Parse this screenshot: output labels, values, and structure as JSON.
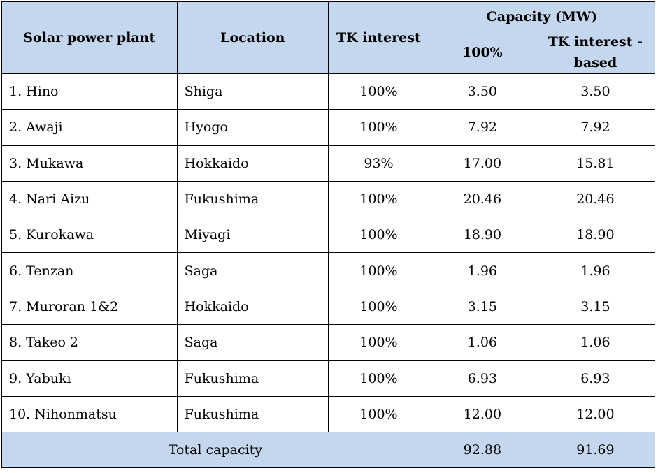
{
  "headers": {
    "plant": "Solar power plant",
    "location": "Location",
    "interest": "TK interest",
    "capacity_group": "Capacity (MW)",
    "capacity_100": "100%",
    "capacity_tk_line1": "TK interest -",
    "capacity_tk_line2": "based"
  },
  "rows": [
    {
      "plant": "1. Hino",
      "location": "Shiga",
      "interest": "100%",
      "cap100": "3.50",
      "captk": "3.50"
    },
    {
      "plant": "2. Awaji",
      "location": "Hyogo",
      "interest": "100%",
      "cap100": "7.92",
      "captk": "7.92"
    },
    {
      "plant": "3. Mukawa",
      "location": "Hokkaido",
      "interest": "93%",
      "cap100": "17.00",
      "captk": "15.81"
    },
    {
      "plant": "4. Nari Aizu",
      "location": "Fukushima",
      "interest": "100%",
      "cap100": "20.46",
      "captk": "20.46"
    },
    {
      "plant": "5. Kurokawa",
      "location": "Miyagi",
      "interest": "100%",
      "cap100": "18.90",
      "captk": "18.90"
    },
    {
      "plant": "6. Tenzan",
      "location": "Saga",
      "interest": "100%",
      "cap100": "1.96",
      "captk": "1.96"
    },
    {
      "plant": "7. Muroran 1&2",
      "location": "Hokkaido",
      "interest": "100%",
      "cap100": "3.15",
      "captk": "3.15"
    },
    {
      "plant": "8. Takeo 2",
      "location": "Saga",
      "interest": "100%",
      "cap100": "1.06",
      "captk": "1.06"
    },
    {
      "plant": "9. Yabuki",
      "location": "Fukushima",
      "interest": "100%",
      "cap100": "6.93",
      "captk": "6.93"
    },
    {
      "plant": "10. Nihonmatsu",
      "location": "Fukushima",
      "interest": "100%",
      "cap100": "12.00",
      "captk": "12.00"
    }
  ],
  "total": {
    "label": "Total capacity",
    "cap100": "92.88",
    "captk": "91.69"
  },
  "colors": {
    "header_bg": "#c5d7ee",
    "border": "#000000"
  }
}
